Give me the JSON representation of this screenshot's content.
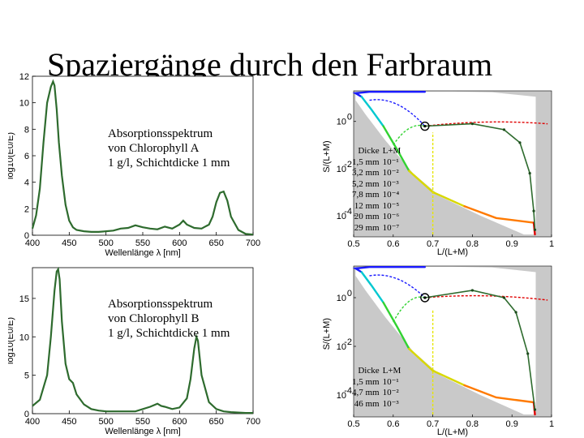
{
  "title": "Spaziergänge durch den Farbraum",
  "spectra": [
    {
      "caption": "Absorptionsspektrum\nvon Chlorophyll A\n1 g/l, Schichtdicke 1 mm",
      "ylabel": "log10(E0/E)",
      "xlabel": "Wellenlänge λ [nm]",
      "color": "#2e6b2e",
      "chart_data": {
        "type": "line",
        "xlabel": "Wellenlänge λ [nm]",
        "ylabel": "log10(E0/E)",
        "xlim": [
          400,
          700
        ],
        "ylim": [
          0,
          12
        ],
        "xticks": [
          400,
          450,
          500,
          550,
          600,
          650,
          700
        ],
        "yticks": [
          0,
          2,
          4,
          6,
          8,
          10,
          12
        ],
        "x": [
          400,
          405,
          410,
          415,
          420,
          425,
          428,
          430,
          433,
          436,
          440,
          445,
          450,
          455,
          460,
          470,
          480,
          490,
          500,
          510,
          520,
          530,
          540,
          550,
          560,
          570,
          580,
          590,
          600,
          605,
          610,
          620,
          630,
          640,
          645,
          650,
          655,
          660,
          665,
          670,
          680,
          690,
          700
        ],
        "y": [
          0.5,
          1.5,
          3.5,
          7.0,
          10.0,
          11.2,
          11.6,
          11.3,
          9.5,
          7.0,
          4.5,
          2.3,
          1.1,
          0.6,
          0.4,
          0.3,
          0.25,
          0.25,
          0.3,
          0.35,
          0.5,
          0.55,
          0.75,
          0.6,
          0.5,
          0.45,
          0.65,
          0.5,
          0.8,
          1.1,
          0.8,
          0.55,
          0.5,
          0.8,
          1.4,
          2.5,
          3.2,
          3.3,
          2.6,
          1.4,
          0.4,
          0.1,
          0.05
        ]
      }
    },
    {
      "caption": "Absorptionsspektrum\nvon Chlorophyll B\n1 g/l, Schichtdicke 1 mm",
      "ylabel": "log10(E0/E)",
      "xlabel": "Wellenlänge λ [nm]",
      "color": "#2e6b2e",
      "chart_data": {
        "type": "line",
        "xlabel": "Wellenlänge λ [nm]",
        "ylabel": "log10(E0/E)",
        "xlim": [
          400,
          700
        ],
        "ylim": [
          0,
          19
        ],
        "xticks": [
          400,
          450,
          500,
          550,
          600,
          650,
          700
        ],
        "yticks": [
          0,
          5,
          10,
          15
        ],
        "x": [
          400,
          410,
          420,
          425,
          430,
          433,
          435,
          437,
          440,
          445,
          450,
          455,
          460,
          470,
          480,
          490,
          500,
          520,
          540,
          560,
          570,
          575,
          580,
          590,
          600,
          610,
          615,
          620,
          623,
          625,
          630,
          640,
          650,
          660,
          670,
          680,
          690,
          700
        ],
        "y": [
          1.0,
          1.8,
          5.0,
          10.0,
          16.0,
          18.5,
          18.8,
          17.5,
          12.0,
          6.5,
          4.5,
          4.0,
          2.5,
          1.2,
          0.6,
          0.4,
          0.3,
          0.3,
          0.3,
          0.9,
          1.3,
          1.0,
          0.9,
          0.6,
          0.8,
          2.0,
          4.5,
          8.5,
          10.0,
          9.5,
          5.0,
          1.5,
          0.6,
          0.3,
          0.2,
          0.15,
          0.1,
          0.1
        ]
      }
    }
  ],
  "color_space": [
    {
      "ylabel": "S/(L+M)",
      "xlabel": "L/(L+M)",
      "xlim": [
        0.5,
        1
      ],
      "xticks": [
        "0.5",
        "0.6",
        "0.7",
        "0.8",
        "0.9",
        "1"
      ],
      "yticks": [
        "10^0",
        "10^-2",
        "10^-4"
      ],
      "legend_header": [
        "Dicke",
        "L+M"
      ],
      "legend_rows": [
        [
          "1,5 mm",
          "10⁻¹"
        ],
        [
          "3,2 mm",
          "10⁻²"
        ],
        [
          "5,2 mm",
          "10⁻³"
        ],
        [
          "7,8 mm",
          "10⁻⁴"
        ],
        [
          "12 mm",
          "10⁻⁵"
        ],
        [
          "20 mm",
          "10⁻⁶"
        ],
        [
          "29 mm",
          "10⁻⁷"
        ]
      ]
    },
    {
      "ylabel": "S/(L+M)",
      "xlabel": "L/(L+M)",
      "xlim": [
        0.5,
        1
      ],
      "xticks": [
        "0.5",
        "0.6",
        "0.7",
        "0.8",
        "0.9",
        "1"
      ],
      "yticks": [
        "10^0",
        "10^-2",
        "10^-4"
      ],
      "legend_header": [
        "Dicke",
        "L+M"
      ],
      "legend_rows": [
        [
          "1,5 mm",
          "10⁻¹"
        ],
        [
          "4,7 mm",
          "10⁻²"
        ],
        [
          "46 mm",
          "10⁻³"
        ]
      ]
    }
  ]
}
